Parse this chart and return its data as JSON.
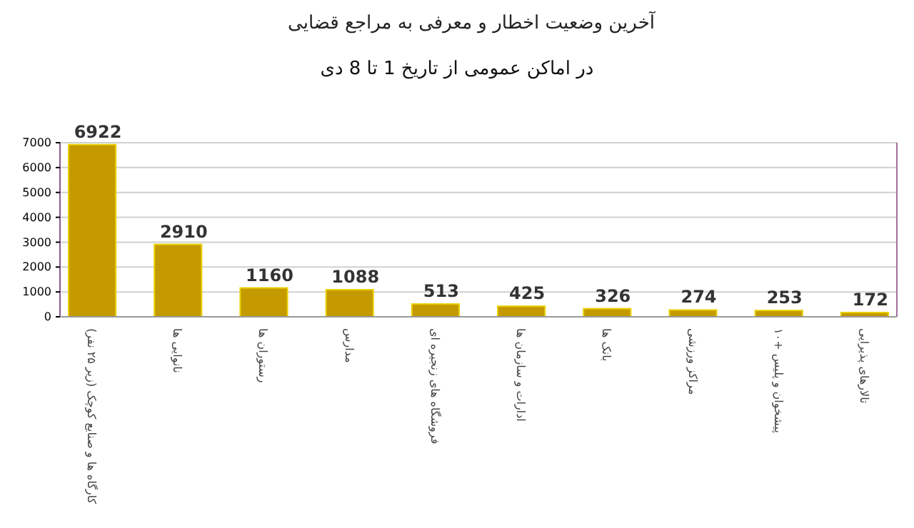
{
  "chart_data": {
    "type": "bar",
    "title": "آخرین وضعیت اخطار و معرفی به مراجع قضایی",
    "subtitle": "در اماکن عمومی از تاریخ 1 تا 8 دی",
    "categories": [
      "کارگاه ها و صنایع کوچک (زیر ۲۵ نفر)",
      "نانوایی ها",
      "رستوران ها",
      "مدارس",
      "فروشگاه های زنجیره ای",
      "ادارات و سازمان ها",
      "بانک ها",
      "مراکز ورزشی",
      "پیشخوان و پلیس +۱۰",
      "تالارهای پذیرایی"
    ],
    "values": [
      6922,
      2910,
      1160,
      1088,
      513,
      425,
      326,
      274,
      253,
      172
    ],
    "color": "#c49a00",
    "ylim": [
      0,
      7000
    ],
    "yticks": [
      0,
      1000,
      2000,
      3000,
      4000,
      5000,
      6000,
      7000
    ],
    "grid": "y",
    "data_labels": true
  }
}
